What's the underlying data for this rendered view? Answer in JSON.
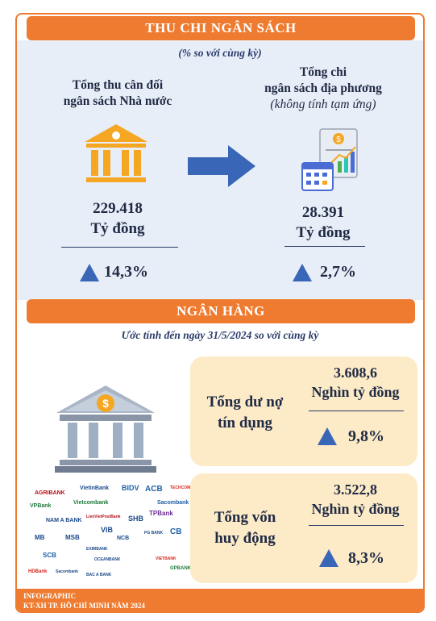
{
  "section1": {
    "banner": "THU CHI NGÂN SÁCH",
    "subtitle": "(% so với cùng kỳ)",
    "left": {
      "title_line1": "Tổng thu cân đối",
      "title_line2": "ngân sách Nhà nước",
      "value": "229.418",
      "unit": "Tỷ đồng",
      "change": "14,3%",
      "icon": "bank-building-icon"
    },
    "right": {
      "title_line1": "Tổng chi",
      "title_line2": "ngân sách địa phương",
      "title_line3": "(không tính tạm ứng)",
      "value": "28.391",
      "unit": "Tỷ đồng",
      "change": "2,7%",
      "icon": "budget-document-icon"
    }
  },
  "section2": {
    "banner": "NGÂN HÀNG",
    "subtitle": "Ước tính đến ngày 31/5/2024 so với cùng kỳ",
    "card1": {
      "label_line1": "Tổng dư nợ",
      "label_line2": "tín dụng",
      "value": "3.608,6",
      "unit": "Nghìn tỷ đồng",
      "change": "9,8%"
    },
    "card2": {
      "label_line1": "Tổng vốn",
      "label_line2": "huy động",
      "value": "3.522,8",
      "unit": "Nghìn tỷ đồng",
      "change": "8,3%"
    },
    "logos": [
      "AGRIBANK",
      "VietinBank",
      "BIDV",
      "ACB",
      "TECHCOMBANK",
      "VPBank",
      "Vietcombank",
      "Sacombank",
      "NAM A BANK",
      "LienVietPostBank",
      "SHB",
      "TPBank",
      "MB",
      "MSB",
      "VIB",
      "NCB",
      "PG BANK",
      "CB",
      "SCB",
      "EXIMBANK",
      "OCEANBANK",
      "VIETBANK",
      "HDBank",
      "Sacombank",
      "BAC A BANK",
      "GPBANK"
    ]
  },
  "footer": {
    "line1": "INFOGRAPHIC",
    "line2": "KT-XH TP. HỒ CHÍ MINH NĂM 2024"
  },
  "colors": {
    "accent": "#ee7b2f",
    "panel": "#e8eef8",
    "card": "#fdebc8",
    "triangle": "#3a66b8",
    "icon_gold": "#f5a623"
  }
}
